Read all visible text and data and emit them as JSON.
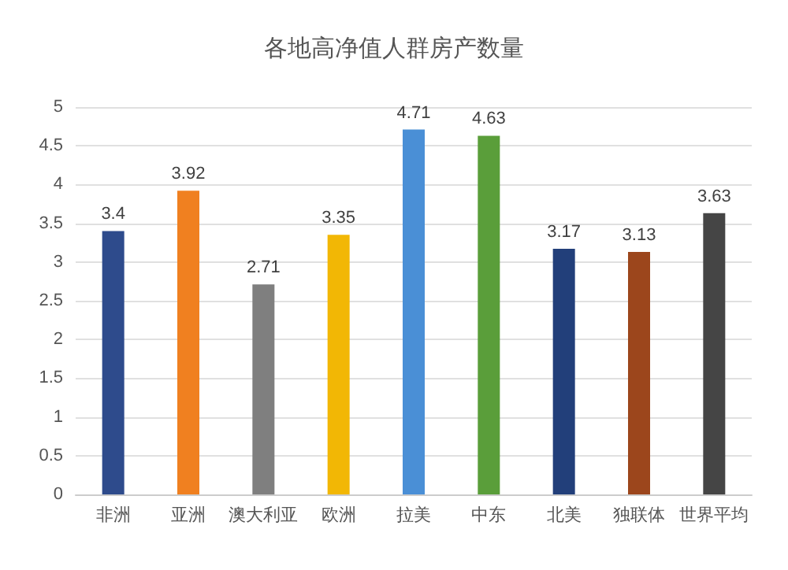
{
  "chart_data": {
    "type": "bar",
    "title": "各地高净值人群房产数量",
    "categories": [
      "非洲",
      "亚洲",
      "澳大利亚",
      "欧洲",
      "拉美",
      "中东",
      "北美",
      "独联体",
      "世界平均"
    ],
    "values": [
      3.4,
      3.92,
      2.71,
      3.35,
      4.71,
      4.63,
      3.17,
      3.13,
      3.63
    ],
    "colors": [
      "#2e4b8c",
      "#f08020",
      "#7f7f7f",
      "#f2b705",
      "#4a8fd6",
      "#5a9e3a",
      "#223f7a",
      "#9c461c",
      "#454545"
    ],
    "ylim": [
      0,
      5
    ],
    "yticks": [
      0,
      0.5,
      1,
      1.5,
      2,
      2.5,
      3,
      3.5,
      4,
      4.5,
      5
    ],
    "grid": true,
    "data_labels": true
  }
}
